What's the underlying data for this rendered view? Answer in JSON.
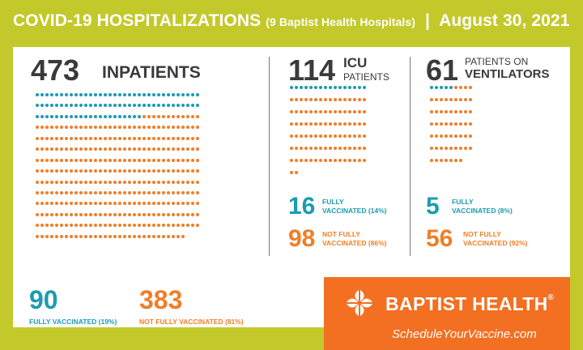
{
  "header": {
    "title": "COVID-19 HOSPITALIZATIONS",
    "subtitle": "(9 Baptist Health Hospitals)",
    "separator": "|",
    "date": "August 30, 2021"
  },
  "inpatients": {
    "count": "473",
    "label": "INPATIENTS",
    "vaccinated": {
      "count": "90",
      "label": "FULLY VACCINATED (19%)"
    },
    "not_vaccinated": {
      "count": "383",
      "label": "NOT FULLY VACCINATED (81%)"
    }
  },
  "icu": {
    "count": "114",
    "label_line1": "ICU",
    "label_line2": "PATIENTS",
    "vaccinated": {
      "count": "16",
      "label_line1": "FULLY",
      "label_line2": "VACCINATED (14%)"
    },
    "not_vaccinated": {
      "count": "98",
      "label_line1": "NOT FULLY",
      "label_line2": "VACCINATED (86%)"
    }
  },
  "ventilators": {
    "count": "61",
    "label_line1": "PATIENTS ON",
    "label_line2": "VENTILATORS",
    "vaccinated": {
      "count": "5",
      "label_line1": "FULLY",
      "label_line2": "VACCINATED (8%)"
    },
    "not_vaccinated": {
      "count": "56",
      "label_line1": "NOT FULLY",
      "label_line2": "VACCINATED (92%)"
    }
  },
  "brand": {
    "name": "BAPTIST HEALTH",
    "registered": "®",
    "url": "ScheduleYourVaccine.com",
    "logo_icon": "baptist-health-cross-logo"
  },
  "colors": {
    "vaccinated": "#1b9bb0",
    "not_vaccinated": "#f07e26",
    "frame": "#c3c92b",
    "brand": "#f36f21"
  }
}
